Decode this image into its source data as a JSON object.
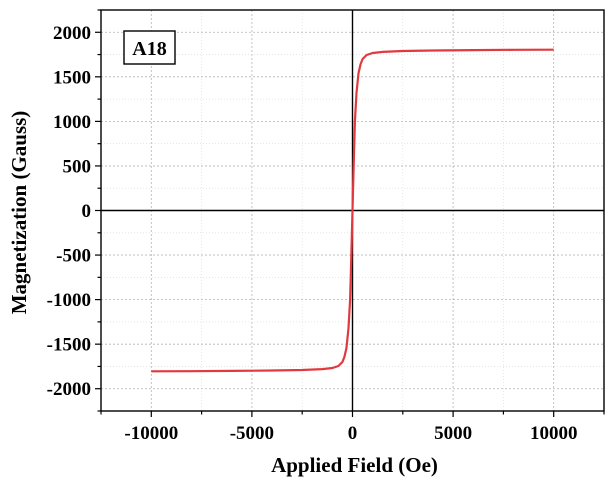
{
  "chart_data": {
    "type": "line",
    "title": "",
    "xlabel": "Applied Field (Oe)",
    "ylabel": "Magnetization (Gauss)",
    "annotation": "A18",
    "xlim": [
      -12500,
      12500
    ],
    "ylim": [
      -2250,
      2250
    ],
    "x_ticks": [
      -10000,
      -5000,
      0,
      5000,
      10000
    ],
    "y_ticks": [
      -2000,
      -1500,
      -1000,
      -500,
      0,
      500,
      1000,
      1500,
      2000
    ],
    "x_tick_labels": [
      "-10000",
      "-5000",
      "0",
      "5000",
      "10000"
    ],
    "y_tick_labels": [
      "-2000",
      "-1500",
      "-1000",
      "-500",
      "0",
      "500",
      "1000",
      "1500",
      "2000"
    ],
    "grid": true,
    "zero_lines": true,
    "series": [
      {
        "color": "#e0393e",
        "x": [
          -10000,
          -8000,
          -6000,
          -4000,
          -2500,
          -1500,
          -1000,
          -700,
          -500,
          -400,
          -300,
          -200,
          -120,
          -60,
          0,
          60,
          120,
          200,
          300,
          400,
          500,
          700,
          1000,
          1500,
          2500,
          4000,
          6000,
          8000,
          10000
        ],
        "y": [
          -1805,
          -1803,
          -1800,
          -1796,
          -1790,
          -1780,
          -1768,
          -1745,
          -1700,
          -1640,
          -1540,
          -1320,
          -1000,
          -520,
          0,
          520,
          1000,
          1320,
          1540,
          1640,
          1700,
          1745,
          1768,
          1780,
          1790,
          1796,
          1800,
          1803,
          1805
        ]
      }
    ]
  }
}
